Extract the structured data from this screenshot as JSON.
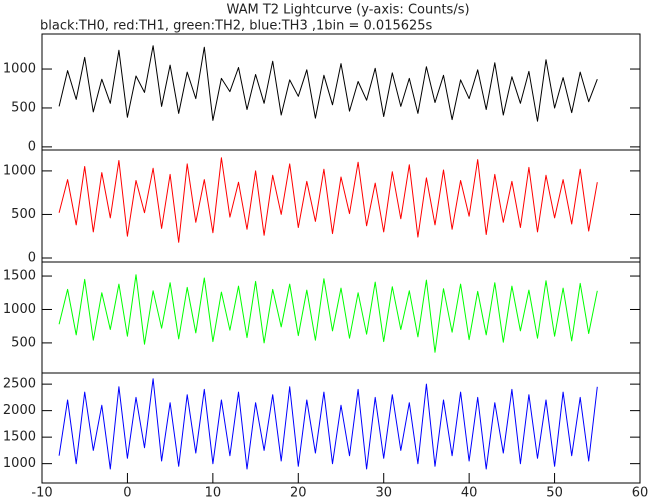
{
  "title": "WAM T2 Lightcurve (y-axis: Counts/s)",
  "subtitle": "black:TH0, red:TH1, green:TH2, blue:TH3 ,1bin = 0.015625s",
  "chart_data": [
    {
      "type": "line",
      "color": "#000000",
      "xlim": [
        -10,
        60
      ],
      "ylim": [
        -40,
        1450
      ],
      "yticks": [
        0,
        500,
        1000
      ],
      "x": [
        -8,
        -7,
        -6,
        -5,
        -4,
        -3,
        -2,
        -1,
        0,
        1,
        2,
        3,
        4,
        5,
        6,
        7,
        8,
        9,
        10,
        11,
        12,
        13,
        14,
        15,
        16,
        17,
        18,
        19,
        20,
        21,
        22,
        23,
        24,
        25,
        26,
        27,
        28,
        29,
        30,
        31,
        32,
        33,
        34,
        35,
        36,
        37,
        38,
        39,
        40,
        41,
        42,
        43,
        44,
        45,
        46,
        47,
        48,
        49,
        50,
        51,
        52,
        53,
        54,
        55
      ],
      "values": [
        520,
        980,
        610,
        1150,
        450,
        870,
        560,
        1240,
        380,
        910,
        700,
        1300,
        520,
        1050,
        430,
        960,
        620,
        1280,
        340,
        880,
        710,
        1020,
        480,
        930,
        560,
        1100,
        410,
        860,
        650,
        990,
        370,
        920,
        540,
        1070,
        460,
        840,
        600,
        1010,
        390,
        950,
        520,
        880,
        430,
        1030,
        570,
        920,
        350,
        860,
        620,
        990,
        480,
        1080,
        410,
        900,
        560,
        970,
        330,
        1120,
        500,
        890,
        440,
        960,
        580,
        870
      ]
    },
    {
      "type": "line",
      "color": "#ff0000",
      "xlim": [
        -10,
        60
      ],
      "ylim": [
        -46,
        1240
      ],
      "yticks": [
        0,
        500,
        1000
      ],
      "x": [
        -8,
        -7,
        -6,
        -5,
        -4,
        -3,
        -2,
        -1,
        0,
        1,
        2,
        3,
        4,
        5,
        6,
        7,
        8,
        9,
        10,
        11,
        12,
        13,
        14,
        15,
        16,
        17,
        18,
        19,
        20,
        21,
        22,
        23,
        24,
        25,
        26,
        27,
        28,
        29,
        30,
        31,
        32,
        33,
        34,
        35,
        36,
        37,
        38,
        39,
        40,
        41,
        42,
        43,
        44,
        45,
        46,
        47,
        48,
        49,
        50,
        51,
        52,
        53,
        54,
        55
      ],
      "values": [
        520,
        900,
        380,
        1050,
        300,
        980,
        460,
        1120,
        250,
        890,
        520,
        1030,
        340,
        960,
        180,
        1080,
        410,
        900,
        290,
        1150,
        470,
        870,
        330,
        1000,
        260,
        950,
        500,
        1080,
        350,
        880,
        420,
        1020,
        280,
        930,
        510,
        1100,
        370,
        860,
        300,
        990,
        450,
        1070,
        240,
        920,
        380,
        1010,
        330,
        890,
        480,
        1130,
        270,
        960,
        410,
        880,
        350,
        1040,
        300,
        950,
        460,
        900,
        390,
        1020,
        310,
        870
      ]
    },
    {
      "type": "line",
      "color": "#00ff00",
      "xlim": [
        -10,
        60
      ],
      "ylim": [
        50,
        1710
      ],
      "yticks": [
        500,
        1000,
        1500
      ],
      "x": [
        -8,
        -7,
        -6,
        -5,
        -4,
        -3,
        -2,
        -1,
        0,
        1,
        2,
        3,
        4,
        5,
        6,
        7,
        8,
        9,
        10,
        11,
        12,
        13,
        14,
        15,
        16,
        17,
        18,
        19,
        20,
        21,
        22,
        23,
        24,
        25,
        26,
        27,
        28,
        29,
        30,
        31,
        32,
        33,
        34,
        35,
        36,
        37,
        38,
        39,
        40,
        41,
        42,
        43,
        44,
        45,
        46,
        47,
        48,
        49,
        50,
        51,
        52,
        53,
        54,
        55
      ],
      "values": [
        780,
        1300,
        620,
        1450,
        540,
        1250,
        700,
        1380,
        600,
        1520,
        480,
        1280,
        720,
        1400,
        560,
        1330,
        650,
        1470,
        520,
        1260,
        690,
        1350,
        580,
        1420,
        500,
        1300,
        740,
        1380,
        610,
        1290,
        540,
        1460,
        680,
        1320,
        570,
        1250,
        630,
        1410,
        520,
        1340,
        700,
        1280,
        590,
        1440,
        360,
        1310,
        660,
        1380,
        550,
        1270,
        620,
        1400,
        510,
        1350,
        680,
        1290,
        570,
        1430,
        600,
        1320,
        530,
        1390,
        640,
        1280
      ]
    },
    {
      "type": "line",
      "color": "#0000ff",
      "xlim": [
        -10,
        60
      ],
      "ylim": [
        635,
        2710
      ],
      "yticks": [
        1000,
        1500,
        2000,
        2500
      ],
      "xticks": [
        -10,
        0,
        10,
        20,
        30,
        40,
        50,
        60
      ],
      "x": [
        -8,
        -7,
        -6,
        -5,
        -4,
        -3,
        -2,
        -1,
        0,
        1,
        2,
        3,
        4,
        5,
        6,
        7,
        8,
        9,
        10,
        11,
        12,
        13,
        14,
        15,
        16,
        17,
        18,
        19,
        20,
        21,
        22,
        23,
        24,
        25,
        26,
        27,
        28,
        29,
        30,
        31,
        32,
        33,
        34,
        35,
        36,
        37,
        38,
        39,
        40,
        41,
        42,
        43,
        44,
        45,
        46,
        47,
        48,
        49,
        50,
        51,
        52,
        53,
        54,
        55
      ],
      "values": [
        1150,
        2200,
        1000,
        2350,
        1250,
        2100,
        900,
        2450,
        1100,
        2250,
        1300,
        2600,
        1050,
        2150,
        950,
        2300,
        1200,
        2400,
        1000,
        2200,
        1150,
        2350,
        900,
        2150,
        1250,
        2300,
        1050,
        2450,
        950,
        2200,
        1200,
        2350,
        1000,
        2100,
        1150,
        2400,
        900,
        2250,
        1100,
        2300,
        1250,
        2150,
        1000,
        2500,
        950,
        2200,
        1150,
        2350,
        1050,
        2250,
        900,
        2150,
        1200,
        2400,
        1000,
        2300,
        1100,
        2200,
        950,
        2350,
        1150,
        2250,
        1050,
        2450
      ]
    }
  ]
}
